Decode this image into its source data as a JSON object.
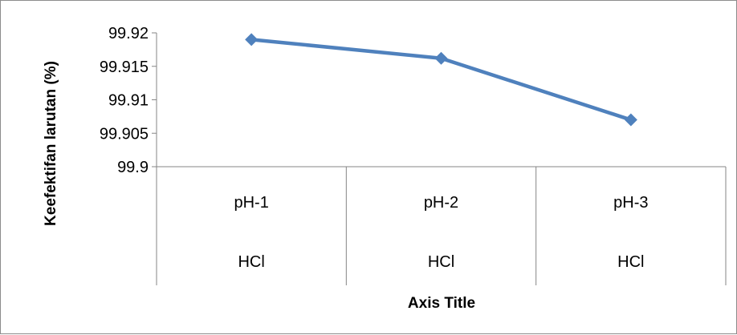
{
  "chart_data": {
    "type": "line",
    "xlabel": "Axis Title",
    "ylabel": "Keefektifan larutan (%)",
    "ylim": [
      99.9,
      99.92
    ],
    "yticks": [
      "99.9",
      "99.905",
      "99.91",
      "99.915",
      "99.92"
    ],
    "grid": false,
    "categories": [
      {
        "label": "pH-1",
        "group": "HCl"
      },
      {
        "label": "pH-2",
        "group": "HCl"
      },
      {
        "label": "pH-3",
        "group": "HCl"
      }
    ],
    "series": [
      {
        "values": [
          99.919,
          99.9162,
          99.907
        ],
        "color": "#4f81bd",
        "marker": "diamond"
      }
    ]
  }
}
